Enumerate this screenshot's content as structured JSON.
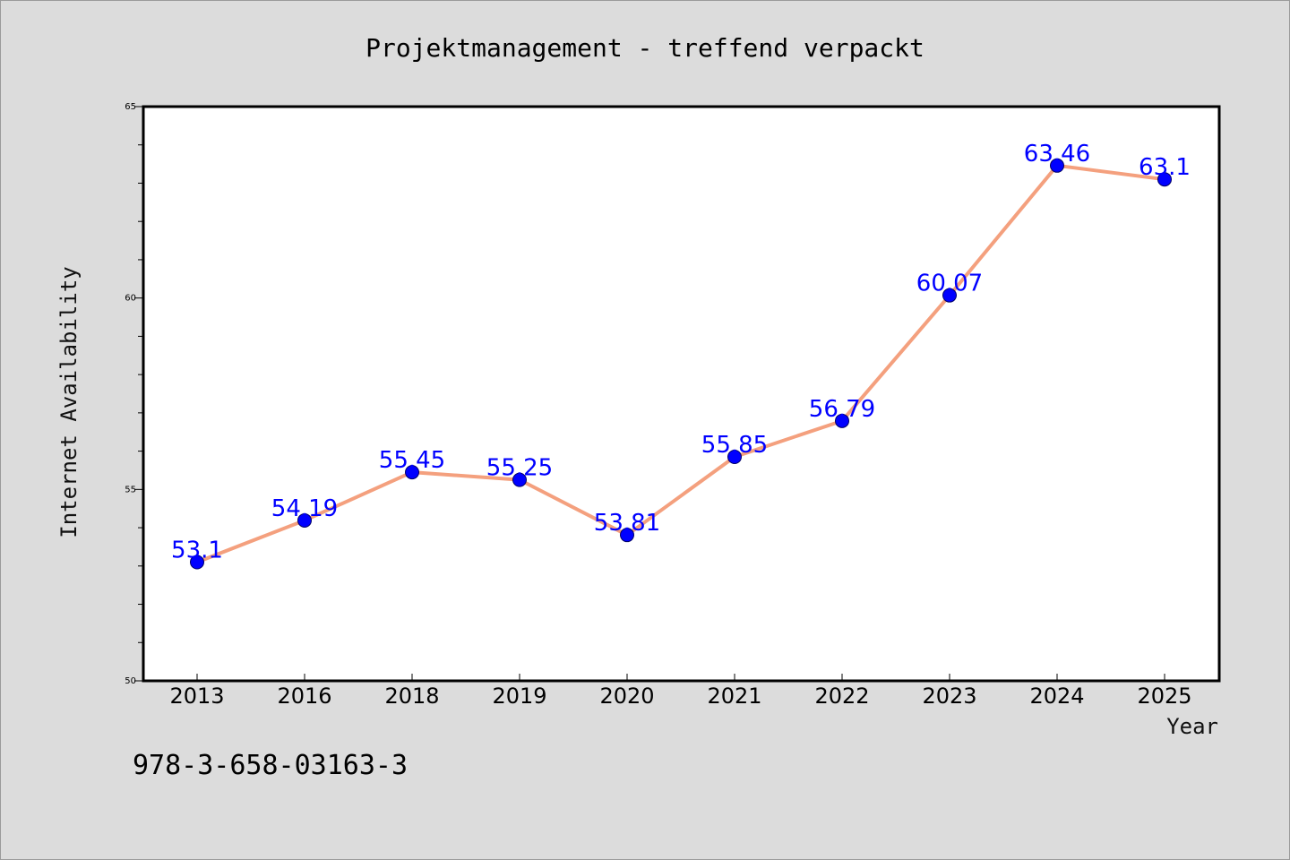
{
  "chart_data": {
    "type": "line",
    "title": "Projektmanagement - treffend verpackt",
    "xlabel": "Year",
    "ylabel": "Internet Availability",
    "categories": [
      "2013",
      "2016",
      "2018",
      "2019",
      "2020",
      "2021",
      "2022",
      "2023",
      "2024",
      "2025"
    ],
    "series": [
      {
        "values": [
          53.1,
          54.19,
          55.45,
          55.25,
          53.81,
          55.85,
          56.79,
          60.07,
          63.46,
          63.1
        ],
        "data_labels": [
          "53.1",
          "54.19",
          "55.45",
          "55.25",
          "53.81",
          "55.85",
          "56.79",
          "60.07",
          "63.46",
          "63.1"
        ]
      }
    ],
    "ylim": [
      50,
      65
    ],
    "yticks": [
      "50",
      "55",
      "60",
      "65"
    ],
    "grid": false,
    "line_color": "#f4a07e",
    "marker_color": "#0000ff",
    "label_color": "#0000ff"
  },
  "footer": {
    "isbn": "978-3-658-03163-3"
  }
}
